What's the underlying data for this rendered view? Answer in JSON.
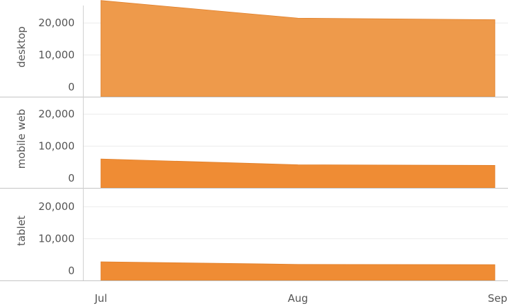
{
  "chart_data": {
    "type": "area",
    "x": [
      "Jul",
      "Aug",
      "Sep"
    ],
    "panels": [
      {
        "name": "desktop",
        "values": [
          27000,
          21500,
          21000
        ],
        "color": "#ee9a4b"
      },
      {
        "name": "mobile web",
        "values": [
          6000,
          4200,
          4000
        ],
        "color": "#ef8c34"
      },
      {
        "name": "tablet",
        "values": [
          2800,
          2000,
          1900
        ],
        "color": "#ef8c34"
      }
    ],
    "y_ticks": [
      0,
      10000,
      20000
    ],
    "y_tick_labels": [
      "0",
      "10,000",
      "20,000"
    ],
    "ylim": [
      0,
      30000
    ],
    "grid": true,
    "legend": "none"
  }
}
